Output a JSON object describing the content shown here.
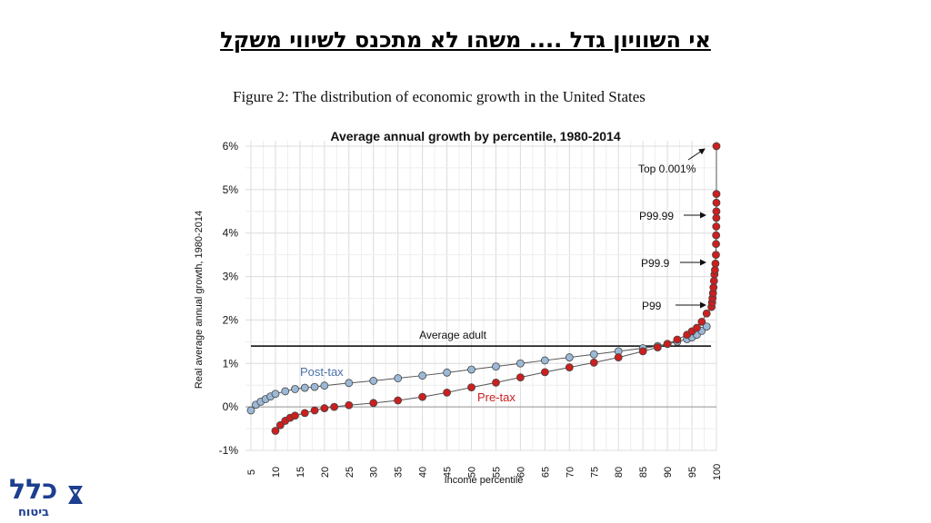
{
  "slide": {
    "title": "אי השוויון גדל .... משהו לא מתכנס לשיווי משקל",
    "figure_caption": "Figure 2:  The distribution of economic growth in the United States"
  },
  "logo": {
    "main": "כלל",
    "sub": "ביטוח",
    "icon": "klal-logo-icon",
    "color": "#1d3f8f"
  },
  "colors": {
    "post_tax": "#9bb9d6",
    "pre_tax": "#cc1f1f",
    "reference": "#000000"
  },
  "chart_data": {
    "type": "scatter",
    "title": "Average annual growth by percentile, 1980-2014",
    "xlabel": "Income percentile",
    "ylabel": "Real average annual growth, 1980-2014",
    "xlim": [
      5,
      100
    ],
    "ylim": [
      -1,
      6
    ],
    "x_ticks": [
      "5",
      "10",
      "15",
      "20",
      "25",
      "30",
      "35",
      "40",
      "45",
      "50",
      "55",
      "60",
      "65",
      "70",
      "75",
      "80",
      "85",
      "90",
      "95",
      "100"
    ],
    "y_ticks": [
      "-1%",
      "0%",
      "1%",
      "2%",
      "3%",
      "4%",
      "5%",
      "6%"
    ],
    "grid": true,
    "reference_line": {
      "label": "Average adult",
      "y": 1.4
    },
    "series": [
      {
        "name": "Post-tax",
        "color": "#9bb9d6",
        "x": [
          5,
          6,
          7,
          8,
          9,
          10,
          12,
          14,
          16,
          18,
          20,
          25,
          30,
          35,
          40,
          45,
          50,
          55,
          60,
          65,
          70,
          75,
          80,
          85,
          88,
          90,
          92,
          94,
          95,
          96,
          97,
          98
        ],
        "y": [
          -0.08,
          0.05,
          0.12,
          0.18,
          0.24,
          0.3,
          0.36,
          0.41,
          0.44,
          0.46,
          0.49,
          0.55,
          0.6,
          0.66,
          0.72,
          0.79,
          0.86,
          0.93,
          1.0,
          1.07,
          1.14,
          1.21,
          1.28,
          1.35,
          1.4,
          1.45,
          1.5,
          1.56,
          1.6,
          1.66,
          1.75,
          1.85
        ]
      },
      {
        "name": "Pre-tax",
        "color": "#cc1f1f",
        "x": [
          10,
          11,
          12,
          13,
          14,
          16,
          18,
          20,
          22,
          25,
          30,
          35,
          40,
          45,
          50,
          55,
          60,
          65,
          70,
          75,
          80,
          85,
          88,
          90,
          92,
          94,
          95,
          96,
          97,
          98,
          99,
          99.1,
          99.2,
          99.3,
          99.4,
          99.5,
          99.6,
          99.7,
          99.8,
          99.9,
          99.92,
          99.94,
          99.96,
          99.98,
          99.99,
          99.995,
          99.998,
          99.999
        ],
        "y": [
          -0.55,
          -0.42,
          -0.32,
          -0.25,
          -0.2,
          -0.14,
          -0.08,
          -0.03,
          0.0,
          0.04,
          0.09,
          0.15,
          0.23,
          0.33,
          0.45,
          0.56,
          0.68,
          0.8,
          0.91,
          1.02,
          1.14,
          1.28,
          1.37,
          1.45,
          1.55,
          1.66,
          1.74,
          1.82,
          1.96,
          2.15,
          2.3,
          2.4,
          2.5,
          2.62,
          2.75,
          2.9,
          3.05,
          3.15,
          3.3,
          3.5,
          3.75,
          3.95,
          4.15,
          4.35,
          4.5,
          4.7,
          4.9,
          6.0
        ]
      }
    ],
    "annotations": [
      {
        "text": "Top 0.001%",
        "x": 100,
        "y": 6.0
      },
      {
        "text": "P99.99",
        "x": 100,
        "y": 4.4
      },
      {
        "text": "P99.9",
        "x": 100,
        "y": 3.3
      },
      {
        "text": "P99",
        "x": 100,
        "y": 2.3
      }
    ],
    "series_labels": [
      {
        "text": "Post-tax",
        "series": "Post-tax"
      },
      {
        "text": "Pre-tax",
        "series": "Pre-tax"
      }
    ]
  }
}
